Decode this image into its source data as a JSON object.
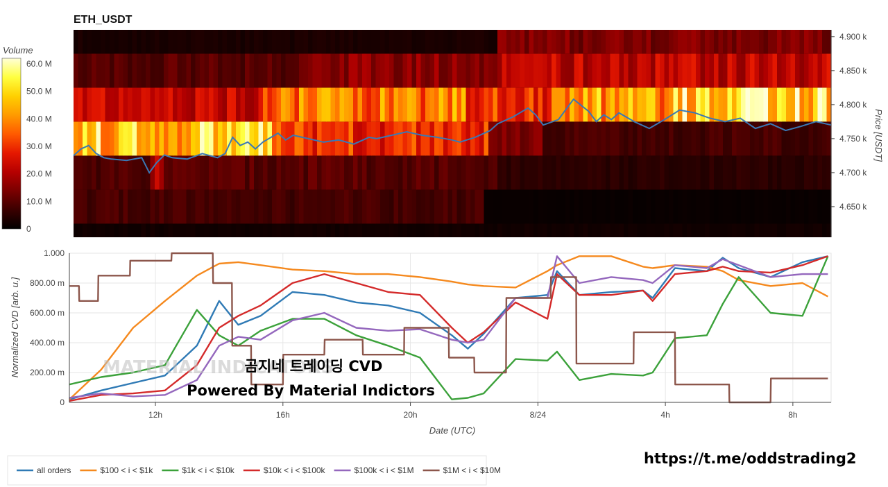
{
  "watermark": "MATERIAL INDICATORS",
  "overlay": {
    "title": "곰지네 트레이딩 CVD",
    "subtitle": "Powered By Material Indictors"
  },
  "footer_url": "https://t.me/oddstrading2",
  "chart_data": [
    {
      "type": "heatmap",
      "title": "ETH_USDT",
      "ylabel": "Price [USDT]",
      "colorbar_label": "Volume",
      "colorbar_ticks": [
        "0",
        "10.0 M",
        "20.0 M",
        "30.0 M",
        "40.0 M",
        "50.0 M",
        "60.0 M"
      ],
      "colorbar_range": [
        0,
        62
      ],
      "y_ticks": [
        "4.650 k",
        "4.700 k",
        "4.750 k",
        "4.800 k",
        "4.850 k",
        "4.900 k"
      ],
      "ylim": [
        4605,
        4910
      ],
      "bands": [
        {
          "low": 4605,
          "high": 4625,
          "segments": [
            [
              0,
              1,
              2
            ]
          ]
        },
        {
          "low": 4625,
          "high": 4675,
          "segments": [
            [
              0,
              0.54,
              8
            ],
            [
              0.54,
              1,
              1
            ]
          ]
        },
        {
          "low": 4675,
          "high": 4725,
          "segments": [
            [
              0,
              0.1,
              9
            ],
            [
              0.1,
              0.12,
              22
            ],
            [
              0.12,
              0.56,
              10
            ],
            [
              0.56,
              1,
              5
            ]
          ]
        },
        {
          "low": 4725,
          "high": 4775,
          "segments": [
            [
              0,
              0.26,
              48
            ],
            [
              0.26,
              0.55,
              30
            ],
            [
              0.55,
              0.62,
              14
            ],
            [
              0.62,
              1,
              8
            ]
          ]
        },
        {
          "low": 4775,
          "high": 4825,
          "segments": [
            [
              0,
              0.25,
              22
            ],
            [
              0.25,
              0.52,
              38
            ],
            [
              0.52,
              0.63,
              30
            ],
            [
              0.63,
              0.79,
              42
            ],
            [
              0.79,
              1,
              52
            ]
          ]
        },
        {
          "low": 4825,
          "high": 4875,
          "segments": [
            [
              0,
              0.3,
              10
            ],
            [
              0.3,
              0.56,
              16
            ],
            [
              0.56,
              1,
              22
            ]
          ]
        },
        {
          "low": 4875,
          "high": 4910,
          "segments": [
            [
              0,
              0.56,
              3
            ],
            [
              0.56,
              1,
              14
            ]
          ]
        }
      ],
      "series": [
        {
          "name": "",
          "color": "#3a78b5",
          "x": [
            0,
            0.01,
            0.02,
            0.03,
            0.04,
            0.05,
            0.07,
            0.09,
            0.1,
            0.11,
            0.12,
            0.13,
            0.15,
            0.17,
            0.19,
            0.2,
            0.21,
            0.22,
            0.23,
            0.24,
            0.25,
            0.27,
            0.28,
            0.29,
            0.31,
            0.33,
            0.35,
            0.37,
            0.39,
            0.4,
            0.42,
            0.44,
            0.46,
            0.48,
            0.5,
            0.51,
            0.53,
            0.55,
            0.56,
            0.58,
            0.6,
            0.61,
            0.62,
            0.64,
            0.66,
            0.68,
            0.69,
            0.7,
            0.71,
            0.72,
            0.74,
            0.76,
            0.78,
            0.8,
            0.82,
            0.84,
            0.86,
            0.88,
            0.9,
            0.92,
            0.94,
            0.96,
            0.98,
            1.0
          ],
          "values": [
            4725,
            4735,
            4740,
            4728,
            4722,
            4720,
            4718,
            4722,
            4700,
            4715,
            4726,
            4722,
            4720,
            4728,
            4722,
            4728,
            4752,
            4740,
            4745,
            4735,
            4745,
            4758,
            4748,
            4755,
            4750,
            4745,
            4748,
            4742,
            4752,
            4750,
            4755,
            4760,
            4755,
            4752,
            4748,
            4745,
            4752,
            4762,
            4772,
            4782,
            4795,
            4785,
            4770,
            4778,
            4808,
            4790,
            4775,
            4785,
            4778,
            4788,
            4775,
            4765,
            4778,
            4792,
            4788,
            4780,
            4775,
            4780,
            4765,
            4772,
            4762,
            4768,
            4775,
            4770
          ]
        }
      ]
    },
    {
      "type": "line",
      "title": "",
      "xlabel": "Date (UTC)",
      "ylabel": "Normalized CVD [arb. u.]",
      "x_ticks": [
        "12h",
        "16h",
        "20h",
        "8/24",
        "4h",
        "8h"
      ],
      "x_tick_hours": [
        12,
        16,
        20,
        24,
        28,
        32
      ],
      "xlim": [
        9.3,
        33.2
      ],
      "y_ticks": [
        "0",
        "200.00 m",
        "400.00 m",
        "600.00 m",
        "800.00 m",
        "1.000"
      ],
      "ylim": [
        0,
        1.0
      ],
      "grid": true,
      "legend_position": "bottom",
      "series": [
        {
          "name": "all orders",
          "color": "#2f7ab5",
          "x": [
            9.3,
            10.3,
            11.3,
            12.3,
            13.3,
            14.0,
            14.6,
            15.3,
            16.3,
            17.3,
            18.3,
            19.3,
            20.3,
            21.3,
            21.8,
            22.3,
            23.3,
            24.3,
            24.6,
            25.3,
            26.3,
            27.3,
            27.6,
            28.3,
            29.3,
            29.8,
            30.3,
            31.3,
            32.3,
            33.1
          ],
          "values": [
            0.02,
            0.08,
            0.13,
            0.18,
            0.38,
            0.68,
            0.52,
            0.58,
            0.74,
            0.72,
            0.67,
            0.65,
            0.6,
            0.45,
            0.36,
            0.46,
            0.7,
            0.72,
            0.88,
            0.72,
            0.74,
            0.75,
            0.7,
            0.9,
            0.88,
            0.97,
            0.9,
            0.84,
            0.94,
            0.98
          ]
        },
        {
          "name": "$100 < i < $1k",
          "color": "#f5891e",
          "x": [
            9.3,
            10.3,
            11.3,
            12.3,
            13.3,
            14.0,
            14.6,
            15.3,
            16.3,
            17.3,
            18.3,
            19.3,
            20.3,
            21.3,
            21.8,
            22.3,
            23.3,
            24.3,
            24.6,
            25.3,
            26.3,
            27.3,
            27.6,
            28.3,
            29.3,
            29.8,
            30.3,
            31.3,
            32.3,
            33.1
          ],
          "values": [
            0.02,
            0.22,
            0.5,
            0.68,
            0.85,
            0.93,
            0.94,
            0.92,
            0.89,
            0.88,
            0.86,
            0.86,
            0.84,
            0.81,
            0.79,
            0.78,
            0.77,
            0.88,
            0.92,
            0.98,
            0.98,
            0.91,
            0.9,
            0.92,
            0.91,
            0.88,
            0.82,
            0.78,
            0.8,
            0.71
          ]
        },
        {
          "name": "$1k < i < $10k",
          "color": "#3ba13a",
          "x": [
            9.3,
            10.3,
            11.3,
            12.3,
            13.3,
            14.0,
            14.6,
            15.3,
            16.3,
            17.3,
            18.3,
            19.3,
            20.3,
            21.3,
            21.8,
            22.3,
            23.3,
            24.3,
            24.6,
            25.3,
            26.3,
            27.3,
            27.6,
            28.3,
            29.3,
            29.8,
            30.3,
            31.3,
            32.3,
            33.1
          ],
          "values": [
            0.12,
            0.17,
            0.2,
            0.25,
            0.62,
            0.45,
            0.38,
            0.48,
            0.56,
            0.56,
            0.45,
            0.38,
            0.3,
            0.02,
            0.03,
            0.06,
            0.29,
            0.28,
            0.34,
            0.15,
            0.19,
            0.18,
            0.2,
            0.43,
            0.45,
            0.66,
            0.84,
            0.6,
            0.58,
            0.98
          ]
        },
        {
          "name": "$10k < i < $100k",
          "color": "#d42a2a",
          "x": [
            9.3,
            10.3,
            11.3,
            12.3,
            13.3,
            14.0,
            14.6,
            15.3,
            16.3,
            17.3,
            18.3,
            19.3,
            20.3,
            21.3,
            21.8,
            22.3,
            23.3,
            24.3,
            24.6,
            25.3,
            26.3,
            27.3,
            27.6,
            28.3,
            29.3,
            29.8,
            30.3,
            31.3,
            32.3,
            33.1
          ],
          "values": [
            0.01,
            0.05,
            0.06,
            0.08,
            0.25,
            0.5,
            0.58,
            0.65,
            0.8,
            0.86,
            0.8,
            0.74,
            0.72,
            0.5,
            0.4,
            0.47,
            0.67,
            0.56,
            0.86,
            0.72,
            0.72,
            0.75,
            0.68,
            0.86,
            0.88,
            0.91,
            0.88,
            0.87,
            0.92,
            0.98
          ]
        },
        {
          "name": "$100k < i < $1M",
          "color": "#9467bd",
          "x": [
            9.3,
            10.3,
            11.3,
            12.3,
            13.3,
            14.0,
            14.6,
            15.3,
            16.3,
            17.3,
            18.3,
            19.3,
            20.3,
            21.3,
            21.8,
            22.3,
            23.3,
            24.3,
            24.6,
            25.3,
            26.3,
            27.3,
            27.6,
            28.3,
            29.3,
            29.8,
            30.3,
            31.3,
            32.3,
            33.1
          ],
          "values": [
            0.03,
            0.06,
            0.04,
            0.05,
            0.15,
            0.38,
            0.44,
            0.42,
            0.55,
            0.6,
            0.5,
            0.48,
            0.49,
            0.42,
            0.4,
            0.42,
            0.7,
            0.7,
            0.98,
            0.8,
            0.84,
            0.82,
            0.8,
            0.92,
            0.9,
            0.96,
            0.92,
            0.84,
            0.86,
            0.86
          ]
        },
        {
          "name": "$1M < i < $10M",
          "color": "#8c564b",
          "x": [
            9.3,
            9.6,
            9.61,
            10.2,
            10.21,
            11.2,
            11.21,
            12.5,
            12.51,
            13.8,
            13.81,
            14.4,
            14.41,
            15.0,
            15.01,
            16.0,
            16.01,
            17.3,
            17.31,
            18.5,
            18.51,
            19.8,
            19.81,
            21.2,
            21.21,
            22.0,
            22.01,
            23.0,
            23.01,
            24.4,
            24.41,
            25.2,
            25.21,
            27.0,
            27.01,
            28.3,
            28.31,
            30.0,
            30.01,
            31.3,
            31.31,
            33.1
          ],
          "values": [
            0.78,
            0.78,
            0.68,
            0.68,
            0.85,
            0.85,
            0.95,
            0.95,
            1.0,
            1.0,
            0.8,
            0.8,
            0.38,
            0.38,
            0.12,
            0.12,
            0.32,
            0.32,
            0.42,
            0.42,
            0.32,
            0.32,
            0.5,
            0.5,
            0.3,
            0.3,
            0.2,
            0.2,
            0.7,
            0.7,
            0.84,
            0.84,
            0.26,
            0.26,
            0.47,
            0.47,
            0.12,
            0.12,
            0.0,
            0.0,
            0.16,
            0.16
          ]
        }
      ]
    }
  ]
}
